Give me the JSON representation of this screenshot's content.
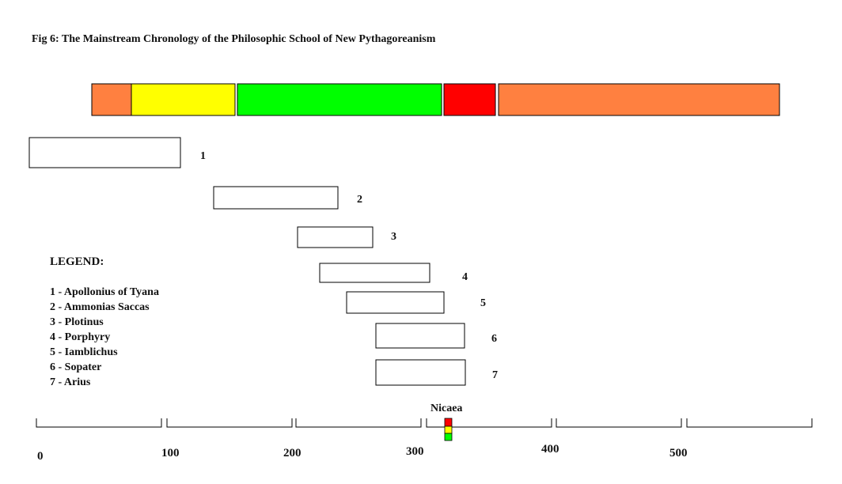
{
  "title": "Fig 6: The Mainstream Chronology of the Philosophic School of New Pythagoreanism",
  "period_bar": {
    "segments": [
      {
        "color": "#ff8040"
      },
      {
        "color": "#ffff00"
      },
      {
        "color": "#00ff00"
      },
      {
        "color": "#ff0000"
      },
      {
        "color": "#ff8040"
      }
    ]
  },
  "philosophers": [
    {
      "number": "1"
    },
    {
      "number": "2"
    },
    {
      "number": "3"
    },
    {
      "number": "4"
    },
    {
      "number": "5"
    },
    {
      "number": "6"
    },
    {
      "number": "7"
    }
  ],
  "legend": {
    "heading": "LEGEND:",
    "items": [
      "1 - Apollonius of Tyana",
      "2 - Ammonias Saccas",
      "3 - Plotinus",
      "4 - Porphyry",
      "5 - Iamblichus",
      "6 - Sopater",
      "7 - Arius"
    ]
  },
  "axis": {
    "tick_labels": [
      "0",
      "100",
      "200",
      "300",
      "400",
      "500"
    ]
  },
  "marker": {
    "label": "Nicaea",
    "colors": [
      "#ff0000",
      "#ffff00",
      "#00ff00"
    ]
  }
}
